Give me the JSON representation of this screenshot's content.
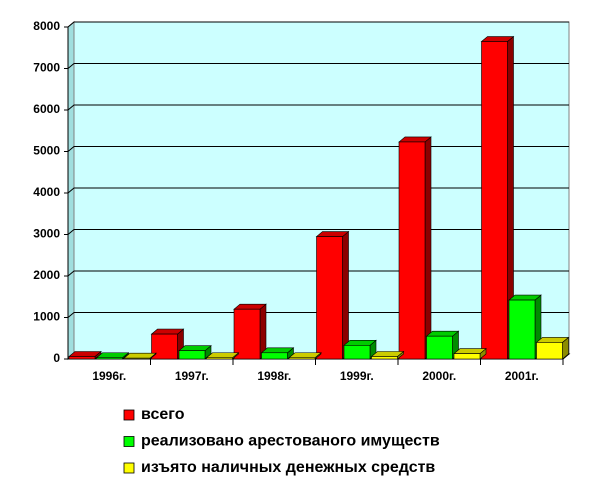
{
  "chart_data": {
    "type": "bar3d",
    "categories": [
      "1996г.",
      "1997г.",
      "1998г.",
      "1999г.",
      "2000г.",
      "2001г."
    ],
    "series": [
      {
        "name": "всего",
        "color": "#ff0000",
        "values": [
          60,
          600,
          1200,
          2950,
          5230,
          7650
        ]
      },
      {
        "name": "реализовано арестованого имуществ",
        "color": "#00ff00",
        "values": [
          30,
          200,
          150,
          330,
          550,
          1420
        ]
      },
      {
        "name": "изъято наличных денежных средств",
        "color": "#ffff00",
        "values": [
          20,
          30,
          30,
          60,
          130,
          400
        ]
      }
    ],
    "ylim": [
      0,
      8000
    ],
    "yticks": [
      0,
      1000,
      2000,
      3000,
      4000,
      5000,
      6000,
      7000,
      8000
    ],
    "grid": true,
    "legend": "bottom"
  }
}
